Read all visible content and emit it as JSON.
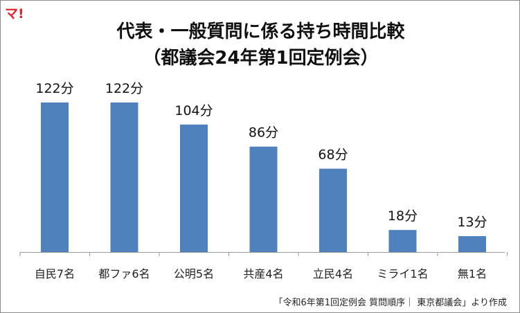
{
  "logo": "マ!",
  "title_line1": "代表・一般質問に係る持ち時間比較",
  "title_line2": "（都議会24年第1回定例会）",
  "source": "「令和6年第1回定例会 質問順序｜ 東京都議会」より作成",
  "colors": {
    "bar": "#4f81bd",
    "axis": "#9a9a9a"
  },
  "chart_data": {
    "type": "bar",
    "title": "代表・一般質問に係る持ち時間比較（都議会24年第1回定例会）",
    "categories": [
      "自民7名",
      "都ファ6名",
      "公明5名",
      "共産4名",
      "立民4名",
      "ミライ1名",
      "無1名"
    ],
    "values": [
      122,
      122,
      104,
      86,
      68,
      18,
      13
    ],
    "value_labels": [
      "122分",
      "122分",
      "104分",
      "86分",
      "68分",
      "18分",
      "13分"
    ],
    "unit": "分",
    "ylim": [
      0,
      122
    ],
    "grid": false,
    "legend": "none"
  }
}
